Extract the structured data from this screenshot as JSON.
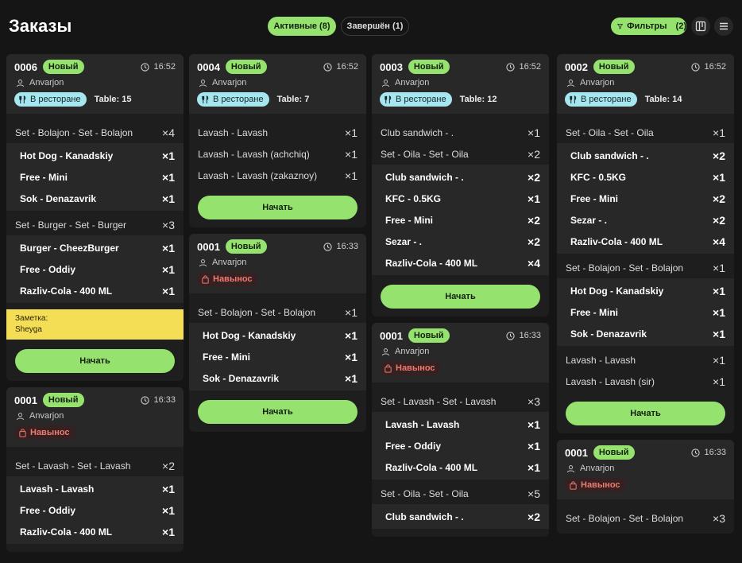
{
  "header": {
    "title": "Заказы",
    "tabs": [
      "Активные (8)",
      "Завершён (1)"
    ],
    "filter": "Фильтры",
    "filter_count": "(2)"
  },
  "columns": [
    {
      "cards": [
        {
          "id": "0006",
          "status": "Новый",
          "time": "16:52",
          "user": "Anvarjon",
          "place": "В ресторане",
          "table": "Table: 15",
          "items": [
            {
              "name": "Set - Bolajon - Set - Bolajon",
              "qty": "×4",
              "sub": [
                {
                  "name": "Hot Dog - Kanadskiy",
                  "qty": "×1"
                },
                {
                  "name": "Free - Mini",
                  "qty": "×1"
                },
                {
                  "name": "Sok - Denazavrik",
                  "qty": "×1"
                }
              ]
            },
            {
              "name": "Set - Burger - Set - Burger",
              "qty": "×3",
              "sub": [
                {
                  "name": "Burger - CheezBurger",
                  "qty": "×1"
                },
                {
                  "name": "Free - Oddiy",
                  "qty": "×1"
                },
                {
                  "name": "Razliv-Cola - 400 ML",
                  "qty": "×1"
                }
              ]
            }
          ],
          "note_label": "Заметка:",
          "note": "Sheyga",
          "button": "Начать"
        },
        {
          "id": "0001",
          "status": "Новый",
          "time": "16:33",
          "user": "Anvarjon",
          "place": "Навынос",
          "items": [
            {
              "name": "Set - Lavash - Set - Lavash",
              "qty": "×2",
              "sub": [
                {
                  "name": "Lavash - Lavash",
                  "qty": "×1"
                },
                {
                  "name": "Free - Oddiy",
                  "qty": "×1"
                },
                {
                  "name": "Razliv-Cola - 400 ML",
                  "qty": "×1"
                }
              ]
            }
          ]
        }
      ]
    },
    {
      "cards": [
        {
          "id": "0004",
          "status": "Новый",
          "time": "16:52",
          "user": "Anvarjon",
          "place": "В ресторане",
          "table": "Table: 7",
          "items": [
            {
              "name": "Lavash - Lavash",
              "qty": "×1"
            },
            {
              "name": "Lavash - Lavash (achchiq)",
              "qty": "×1"
            },
            {
              "name": "Lavash - Lavash (zakaznoy)",
              "qty": "×1"
            }
          ],
          "button": "Начать"
        },
        {
          "id": "0001",
          "status": "Новый",
          "time": "16:33",
          "user": "Anvarjon",
          "place": "Навынос",
          "items": [
            {
              "name": "Set - Bolajon - Set - Bolajon",
              "qty": "×1",
              "sub": [
                {
                  "name": "Hot Dog - Kanadskiy",
                  "qty": "×1"
                },
                {
                  "name": "Free - Mini",
                  "qty": "×1"
                },
                {
                  "name": "Sok - Denazavrik",
                  "qty": "×1"
                }
              ]
            }
          ],
          "button": "Начать"
        }
      ]
    },
    {
      "cards": [
        {
          "id": "0003",
          "status": "Новый",
          "time": "16:52",
          "user": "Anvarjon",
          "place": "В ресторане",
          "table": "Table: 12",
          "items": [
            {
              "name": "Club sandwich - .",
              "qty": "×1"
            },
            {
              "name": "Set - Oila - Set - Oila",
              "qty": "×2",
              "sub": [
                {
                  "name": "Club sandwich - .",
                  "qty": "×2"
                },
                {
                  "name": "KFC - 0.5KG",
                  "qty": "×1"
                },
                {
                  "name": "Free - Mini",
                  "qty": "×2"
                },
                {
                  "name": "Sezar - .",
                  "qty": "×2"
                },
                {
                  "name": "Razliv-Cola - 400 ML",
                  "qty": "×4"
                }
              ]
            }
          ],
          "button": "Начать"
        },
        {
          "id": "0001",
          "status": "Новый",
          "time": "16:33",
          "user": "Anvarjon",
          "place": "Навынос",
          "items": [
            {
              "name": "Set - Lavash - Set - Lavash",
              "qty": "×3",
              "sub": [
                {
                  "name": "Lavash - Lavash",
                  "qty": "×1"
                },
                {
                  "name": "Free - Oddiy",
                  "qty": "×1"
                },
                {
                  "name": "Razliv-Cola - 400 ML",
                  "qty": "×1"
                }
              ]
            },
            {
              "name": "Set - Oila - Set - Oila",
              "qty": "×5",
              "sub": [
                {
                  "name": "Club sandwich - .",
                  "qty": "×2"
                }
              ]
            }
          ]
        }
      ]
    },
    {
      "cards": [
        {
          "id": "0002",
          "status": "Новый",
          "time": "16:52",
          "user": "Anvarjon",
          "place": "В ресторане",
          "table": "Table: 14",
          "items": [
            {
              "name": "Set - Oila - Set - Oila",
              "qty": "×1",
              "sub": [
                {
                  "name": "Club sandwich - .",
                  "qty": "×2"
                },
                {
                  "name": "KFC - 0.5KG",
                  "qty": "×1"
                },
                {
                  "name": "Free - Mini",
                  "qty": "×2"
                },
                {
                  "name": "Sezar - .",
                  "qty": "×2"
                },
                {
                  "name": "Razliv-Cola - 400 ML",
                  "qty": "×4"
                }
              ]
            },
            {
              "name": "Set - Bolajon - Set - Bolajon",
              "qty": "×1",
              "sub": [
                {
                  "name": "Hot Dog - Kanadskiy",
                  "qty": "×1"
                },
                {
                  "name": "Free - Mini",
                  "qty": "×1"
                },
                {
                  "name": "Sok - Denazavrik",
                  "qty": "×1"
                }
              ]
            },
            {
              "name": "Lavash - Lavash",
              "qty": "×1"
            },
            {
              "name": "Lavash - Lavash (sir)",
              "qty": "×1"
            }
          ],
          "button": "Начать"
        },
        {
          "id": "0001",
          "status": "Новый",
          "time": "16:33",
          "user": "Anvarjon",
          "place": "Навынос",
          "items": [
            {
              "name": "Set - Bolajon - Set - Bolajon",
              "qty": "×3"
            }
          ]
        }
      ]
    }
  ]
}
